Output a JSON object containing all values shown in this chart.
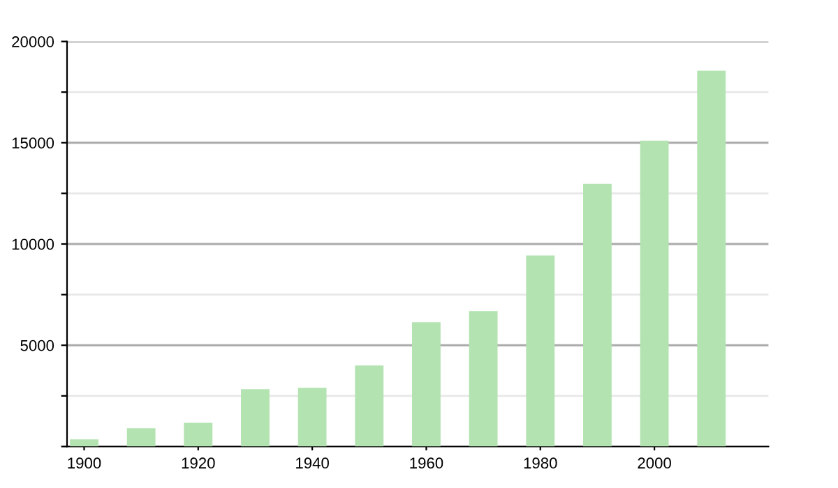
{
  "chart_data": {
    "type": "bar",
    "x": [
      1900,
      1910,
      1920,
      1930,
      1940,
      1950,
      1960,
      1970,
      1980,
      1990,
      2000,
      2010
    ],
    "values": [
      350,
      900,
      1170,
      2830,
      2900,
      4000,
      6140,
      6690,
      9430,
      12970,
      15100,
      18550
    ],
    "color": "#b3e3b1",
    "xlim": [
      1897,
      2020
    ],
    "xticks": [
      1900,
      1920,
      1940,
      1960,
      1980,
      2000
    ],
    "ylim": [
      0,
      20000
    ],
    "yticks": [
      {
        "value": 0,
        "label": null
      },
      {
        "value": 2500,
        "label": null
      },
      5000,
      {
        "value": 7500,
        "label": null
      },
      10000,
      {
        "value": 12500,
        "label": null
      },
      15000,
      {
        "value": 17500,
        "label": null
      },
      20000
    ],
    "grid": "y",
    "legend": false
  }
}
